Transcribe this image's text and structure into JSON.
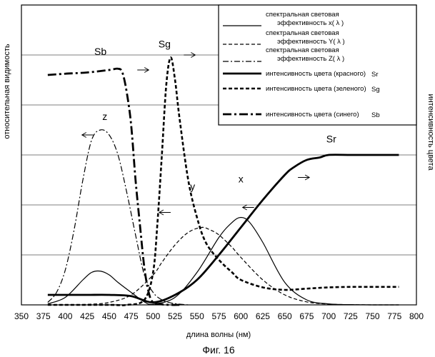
{
  "chart_data": {
    "type": "line",
    "caption": "Фиг. 16",
    "xlabel": "длина волны (нм)",
    "ylabel_left": "относительная видимость",
    "ylabel_right": "интенсивность цвета",
    "xlim": [
      350,
      800
    ],
    "ylim": [
      0,
      1
    ],
    "x_ticks": [
      "350",
      "375",
      "400",
      "425",
      "450",
      "475",
      "500",
      "525",
      "550",
      "575",
      "600",
      "625",
      "650",
      "675",
      "700",
      "725",
      "750",
      "775",
      "800"
    ],
    "grid": "horizontal",
    "legend_position": "top-right",
    "legend": [
      {
        "line1": "спектральная световая",
        "line2": "эффективность",
        "symbol": "x( λ )",
        "style": "thin-solid"
      },
      {
        "line1": "спектральная световая",
        "line2": "эффективность",
        "symbol": "Y( λ )",
        "style": "thin-dashed"
      },
      {
        "line1": "спектральная световая",
        "line2": "эффективность",
        "symbol": "Z( λ )",
        "style": "thin-dashdot"
      },
      {
        "line1": "интенсивность цвета (красного)",
        "line2": "",
        "symbol": "Sr",
        "style": "thick-solid"
      },
      {
        "line1": "интенсивность цвета (зеленого)",
        "line2": "",
        "symbol": "Sg",
        "style": "thick-dashed"
      },
      {
        "line1": "интенсивность цвета (синего)",
        "line2": "",
        "symbol": "Sb",
        "style": "thick-dashdot"
      }
    ],
    "series": [
      {
        "name": "x",
        "style": "thin-solid",
        "label": "x",
        "label_at": [
          600,
          0.49
        ],
        "x": [
          380,
          400,
          420,
          430,
          440,
          450,
          460,
          475,
          490,
          500,
          525,
          550,
          575,
          590,
          600,
          610,
          625,
          650,
          675,
          700,
          725,
          750,
          780
        ],
        "y": [
          0.004,
          0.03,
          0.1,
          0.13,
          0.135,
          0.12,
          0.09,
          0.05,
          0.012,
          0.003,
          0.03,
          0.13,
          0.27,
          0.33,
          0.35,
          0.33,
          0.25,
          0.09,
          0.02,
          0.004,
          0.001,
          0,
          0
        ]
      },
      {
        "name": "y",
        "style": "thin-dashed",
        "label": "y",
        "label_at": [
          545,
          0.46
        ],
        "x": [
          380,
          400,
          425,
          450,
          475,
          500,
          510,
          525,
          540,
          555,
          565,
          575,
          590,
          600,
          625,
          650,
          675,
          700,
          725,
          750,
          780
        ],
        "y": [
          0,
          0,
          0.002,
          0.01,
          0.04,
          0.12,
          0.17,
          0.24,
          0.29,
          0.31,
          0.3,
          0.28,
          0.23,
          0.19,
          0.1,
          0.04,
          0.012,
          0.003,
          0.001,
          0,
          0
        ]
      },
      {
        "name": "z",
        "style": "thin-dashdot",
        "label": "z",
        "label_at": [
          445,
          0.74
        ],
        "x": [
          380,
          390,
          400,
          410,
          420,
          430,
          440,
          450,
          460,
          470,
          480,
          490,
          500,
          510,
          520,
          530,
          540
        ],
        "y": [
          0.01,
          0.05,
          0.14,
          0.3,
          0.5,
          0.66,
          0.7,
          0.68,
          0.6,
          0.45,
          0.28,
          0.12,
          0.05,
          0.02,
          0.008,
          0.003,
          0
        ]
      },
      {
        "name": "Sr",
        "style": "thick-solid",
        "label": "Sr",
        "label_at": [
          703,
          0.65
        ],
        "x": [
          380,
          400,
          425,
          450,
          475,
          500,
          525,
          550,
          575,
          600,
          625,
          650,
          660,
          675,
          690,
          700,
          725,
          750,
          780
        ],
        "y": [
          0.04,
          0.04,
          0.04,
          0.04,
          0.035,
          0.01,
          0.04,
          0.1,
          0.2,
          0.31,
          0.42,
          0.52,
          0.55,
          0.58,
          0.59,
          0.6,
          0.6,
          0.6,
          0.6
        ]
      },
      {
        "name": "Sg",
        "style": "thick-dashed",
        "label": "Sg",
        "label_at": [
          513,
          1.03
        ],
        "x": [
          380,
          450,
          470,
          490,
          500,
          505,
          510,
          515,
          520,
          525,
          530,
          540,
          550,
          560,
          575,
          590,
          600,
          625,
          650,
          675,
          700,
          725,
          750,
          780
        ],
        "y": [
          0,
          0,
          0,
          0.02,
          0.13,
          0.33,
          0.6,
          0.88,
          0.99,
          0.9,
          0.75,
          0.5,
          0.35,
          0.25,
          0.18,
          0.13,
          0.1,
          0.07,
          0.06,
          0.065,
          0.07,
          0.072,
          0.072,
          0.072
        ]
      },
      {
        "name": "Sb",
        "style": "thick-dashdot",
        "label": "Sb",
        "label_at": [
          440,
          1.0
        ],
        "x": [
          380,
          400,
          425,
          450,
          460,
          465,
          470,
          475,
          480,
          485,
          490,
          495,
          500,
          510,
          520,
          530
        ],
        "y": [
          0.92,
          0.925,
          0.93,
          0.94,
          0.945,
          0.93,
          0.85,
          0.72,
          0.5,
          0.32,
          0.15,
          0.05,
          0.01,
          0.002,
          0,
          0
        ]
      }
    ],
    "arrows": [
      {
        "at": [
          482,
          0.94
        ],
        "dir": "right"
      },
      {
        "at": [
          432,
          0.68
        ],
        "dir": "left"
      },
      {
        "at": [
          535,
          1.0
        ],
        "dir": "right"
      },
      {
        "at": [
          520,
          0.37
        ],
        "dir": "left"
      },
      {
        "at": [
          615,
          0.39
        ],
        "dir": "left"
      },
      {
        "at": [
          665,
          0.51
        ],
        "dir": "right"
      }
    ]
  }
}
